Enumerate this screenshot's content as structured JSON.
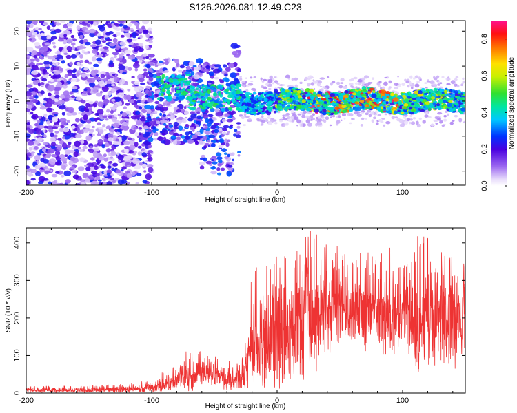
{
  "chart_data": [
    {
      "type": "heatmap",
      "title": "S126.2026.081.12.49.C23",
      "xlabel": "Height of straight line (km)",
      "ylabel": "Frequency (Hz)",
      "xlim": [
        -200,
        150
      ],
      "ylim": [
        -24,
        23
      ],
      "xticks": [
        "-200",
        "-100",
        "0",
        "100"
      ],
      "yticks": [
        "-20",
        "-10",
        "0",
        "10",
        "20"
      ],
      "description_regions": [
        {
          "x_range": [
            -200,
            -100
          ],
          "y_range": [
            -24,
            23
          ],
          "level": "scattered 0.1-0.3"
        },
        {
          "x_range": [
            -100,
            -30
          ],
          "y_range": [
            -20,
            10
          ],
          "level": "0.2-0.4"
        },
        {
          "x_range": [
            -30,
            150
          ],
          "y_range": [
            -3,
            4
          ],
          "level": "0.3-0.9 band near 0 Hz"
        }
      ],
      "colorbar": {
        "label": "Normalized spectral amplitude",
        "range": [
          0,
          0.9
        ],
        "ticks": [
          "0.0",
          "0.2",
          "0.4",
          "0.6",
          "0.8"
        ]
      }
    },
    {
      "type": "line",
      "title": "",
      "xlabel": "Height of straight line (km)",
      "ylabel": "SNR (10 * v/v)",
      "xlim": [
        -200,
        150
      ],
      "ylim": [
        0,
        440
      ],
      "xticks": [
        "-200",
        "-100",
        "0",
        "100"
      ],
      "yticks": [
        "0",
        "100",
        "200",
        "300",
        "400"
      ],
      "color": "#ee3333",
      "series": [
        {
          "name": "SNR",
          "x": [
            -200,
            -180,
            -160,
            -140,
            -120,
            -100,
            -90,
            -80,
            -70,
            -60,
            -50,
            -40,
            -30,
            -25,
            -20,
            -15,
            -10,
            -5,
            0,
            10,
            20,
            30,
            40,
            50,
            60,
            70,
            80,
            90,
            100,
            110,
            120,
            130,
            140,
            150
          ],
          "mean": [
            8,
            9,
            9,
            10,
            11,
            14,
            20,
            35,
            55,
            60,
            55,
            45,
            35,
            50,
            110,
            130,
            150,
            165,
            175,
            195,
            210,
            220,
            240,
            245,
            240,
            235,
            230,
            225,
            220,
            215,
            210,
            205,
            215,
            220
          ],
          "peak": [
            18,
            20,
            20,
            22,
            26,
            35,
            60,
            90,
            120,
            110,
            100,
            95,
            75,
            160,
            350,
            360,
            370,
            380,
            400,
            390,
            430,
            440,
            420,
            400,
            370,
            380,
            360,
            400,
            330,
            420,
            420,
            380,
            400,
            380
          ]
        }
      ]
    }
  ]
}
